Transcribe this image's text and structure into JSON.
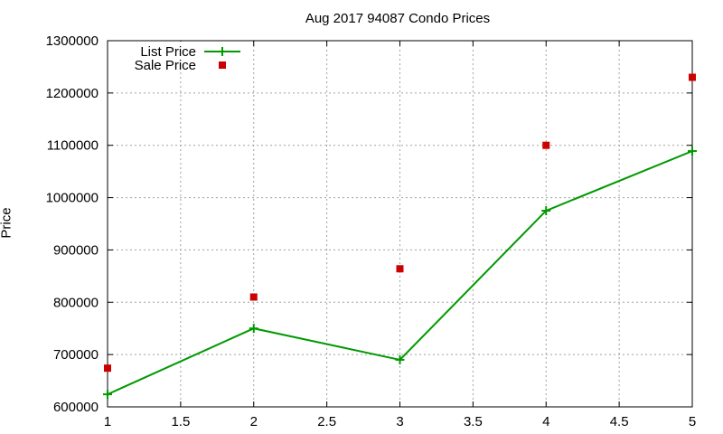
{
  "chart_data": {
    "type": "line",
    "title": "Aug 2017 94087 Condo Prices",
    "xlabel": "",
    "ylabel": "Price",
    "xlim": [
      1,
      5
    ],
    "ylim": [
      600000,
      1300000
    ],
    "xticks": [
      "1",
      "1.5",
      "2",
      "2.5",
      "3",
      "3.5",
      "4",
      "4.5",
      "5"
    ],
    "yticks": [
      "600000",
      "700000",
      "800000",
      "900000",
      "1000000",
      "1100000",
      "1200000",
      "1300000"
    ],
    "grid": true,
    "legend_position": "top-left",
    "x": [
      1,
      2,
      3,
      4,
      5
    ],
    "series": [
      {
        "name": "List Price",
        "style": "linespoints",
        "color": "#009900",
        "values": [
          624000,
          750000,
          690000,
          975000,
          1089000
        ]
      },
      {
        "name": "Sale Price",
        "style": "points",
        "color": "#cc0000",
        "values": [
          674000,
          810000,
          864000,
          1100000,
          1230000
        ]
      }
    ]
  }
}
